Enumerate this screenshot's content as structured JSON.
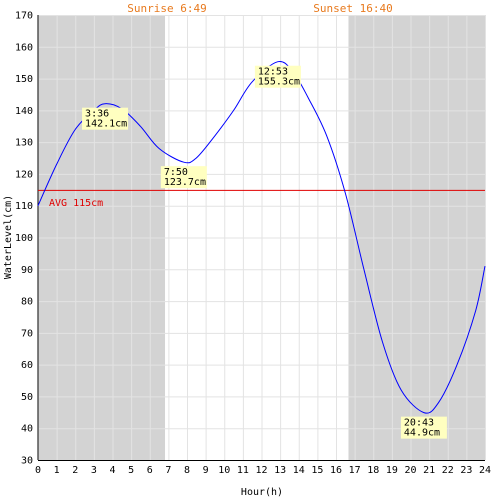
{
  "chart_data": {
    "type": "line",
    "xlabel": "Hour(h)",
    "ylabel": "WaterLevel(cm)",
    "xlim": [
      0,
      24
    ],
    "ylim": [
      30,
      170
    ],
    "grid": true,
    "x_ticks": [
      "0",
      "1",
      "2",
      "3",
      "4",
      "5",
      "6",
      "7",
      "8",
      "9",
      "10",
      "11",
      "12",
      "13",
      "14",
      "15",
      "16",
      "17",
      "18",
      "19",
      "20",
      "21",
      "22",
      "23",
      "24"
    ],
    "y_ticks": [
      "30",
      "40",
      "50",
      "60",
      "70",
      "80",
      "90",
      "100",
      "110",
      "120",
      "130",
      "140",
      "150",
      "160",
      "170"
    ],
    "sunrise": {
      "label": "Sunrise 6:49",
      "hour": 6.82
    },
    "sunset": {
      "label": "Sunset 16:40",
      "hour": 16.67
    },
    "average": {
      "label": "AVG 115cm",
      "value": 115
    },
    "series": [
      {
        "color": "#0000ff",
        "x": [
          0,
          1,
          2,
          3,
          3.6,
          4.5,
          5.5,
          6.5,
          7.83,
          8.5,
          9.5,
          10.5,
          11.5,
          12.88,
          13.7,
          14.5,
          15.5,
          16.5,
          17.5,
          18.5,
          19.5,
          20.72,
          21.5,
          22.5,
          23.5,
          24
        ],
        "y": [
          110,
          123,
          134,
          140,
          142.1,
          140.5,
          135,
          128,
          123.7,
          125,
          132,
          140,
          149,
          155.3,
          152,
          144,
          132,
          114,
          90,
          67,
          52,
          44.9,
          48,
          60,
          77,
          91
        ]
      }
    ],
    "annotations": [
      {
        "time": "3:36",
        "level": "142.1cm",
        "hour": 3.6,
        "value": 142.1
      },
      {
        "time": "7:50",
        "level": "123.7cm",
        "hour": 7.83,
        "value": 123.7
      },
      {
        "time": "12:53",
        "level": "155.3cm",
        "hour": 12.88,
        "value": 155.3
      },
      {
        "time": "20:43",
        "level": "44.9cm",
        "hour": 20.72,
        "value": 44.9
      }
    ],
    "colors": {
      "night_shade": "#d3d3d3",
      "grid": "#e3e3e3",
      "avg_line": "#e00000",
      "annotation_bg": "#ffffc0",
      "sun_text": "#e87a1e"
    }
  }
}
